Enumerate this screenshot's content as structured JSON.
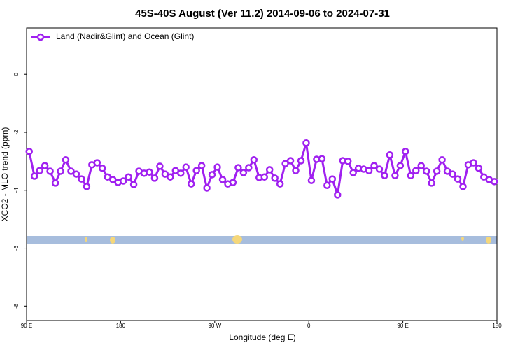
{
  "chart_data": {
    "type": "line",
    "title": "45S-40S August (Ver 11.2)   2014-09-06 to 2024-07-31",
    "xlabel": "Longitude (deg E)",
    "ylabel": "XCO2 - MLO trend (ppm)",
    "legend": "top-left",
    "xlim": [
      90,
      540
    ],
    "ylim": [
      -8.5,
      1.6
    ],
    "xticks": [
      {
        "value": 90,
        "label": "90 E"
      },
      {
        "value": 180,
        "label": "180"
      },
      {
        "value": 270,
        "label": "90 W"
      },
      {
        "value": 360,
        "label": "0"
      },
      {
        "value": 450,
        "label": "90 E"
      },
      {
        "value": 540,
        "label": "180"
      }
    ],
    "yticks": [
      -8,
      -6,
      -4,
      -2,
      0
    ],
    "x": [
      92.5,
      97.5,
      102.5,
      107.5,
      112.5,
      117.5,
      122.5,
      127.5,
      132.5,
      137.5,
      142.5,
      147.5,
      152.5,
      157.5,
      162.5,
      167.5,
      172.5,
      177.5,
      182.5,
      187.5,
      192.5,
      197.5,
      202.5,
      207.5,
      212.5,
      217.5,
      222.5,
      227.5,
      232.5,
      237.5,
      242.5,
      247.5,
      252.5,
      257.5,
      262.5,
      267.5,
      272.5,
      277.5,
      282.5,
      287.5,
      292.5,
      297.5,
      302.5,
      307.5,
      312.5,
      317.5,
      322.5,
      327.5,
      332.5,
      337.5,
      342.5,
      347.5,
      352.5,
      357.5,
      362.5,
      367.5,
      372.5,
      377.5,
      382.5,
      387.5,
      392.5,
      397.5,
      402.5,
      407.5,
      412.5,
      417.5,
      422.5,
      427.5,
      432.5,
      437.5,
      442.5,
      447.5,
      452.5,
      457.5,
      462.5,
      467.5,
      472.5,
      477.5,
      482.5,
      487.5,
      492.5,
      497.5,
      502.5,
      507.5,
      512.5,
      517.5,
      522.5,
      527.5,
      532.5,
      537.5
    ],
    "series": [
      {
        "name": "Land (Nadir&Glint) and Ocean (Glint)",
        "color": "#a020f0",
        "values": [
          -2.66,
          -3.51,
          -3.32,
          -3.15,
          -3.34,
          -3.75,
          -3.34,
          -2.95,
          -3.34,
          -3.44,
          -3.61,
          -3.87,
          -3.12,
          -3.05,
          -3.24,
          -3.54,
          -3.63,
          -3.73,
          -3.68,
          -3.54,
          -3.8,
          -3.34,
          -3.41,
          -3.37,
          -3.58,
          -3.17,
          -3.44,
          -3.54,
          -3.32,
          -3.41,
          -3.2,
          -3.78,
          -3.32,
          -3.15,
          -3.92,
          -3.46,
          -3.2,
          -3.63,
          -3.78,
          -3.73,
          -3.22,
          -3.39,
          -3.22,
          -2.95,
          -3.56,
          -3.54,
          -3.29,
          -3.58,
          -3.78,
          -3.08,
          -2.98,
          -3.32,
          -2.98,
          -2.37,
          -3.66,
          -2.93,
          -2.91,
          -3.83,
          -3.61,
          -4.16,
          -2.98,
          -3.0,
          -3.39,
          -3.24,
          -3.27,
          -3.32,
          -3.15,
          -3.27,
          -3.49,
          -2.78,
          -3.49,
          -3.15,
          -2.66,
          -3.49,
          -3.32,
          -3.15,
          -3.34,
          -3.75,
          -3.34,
          -2.95,
          -3.34,
          -3.44,
          -3.61,
          -3.87,
          -3.12,
          -3.05,
          -3.24,
          -3.54,
          -3.63,
          -3.7
        ]
      }
    ]
  }
}
